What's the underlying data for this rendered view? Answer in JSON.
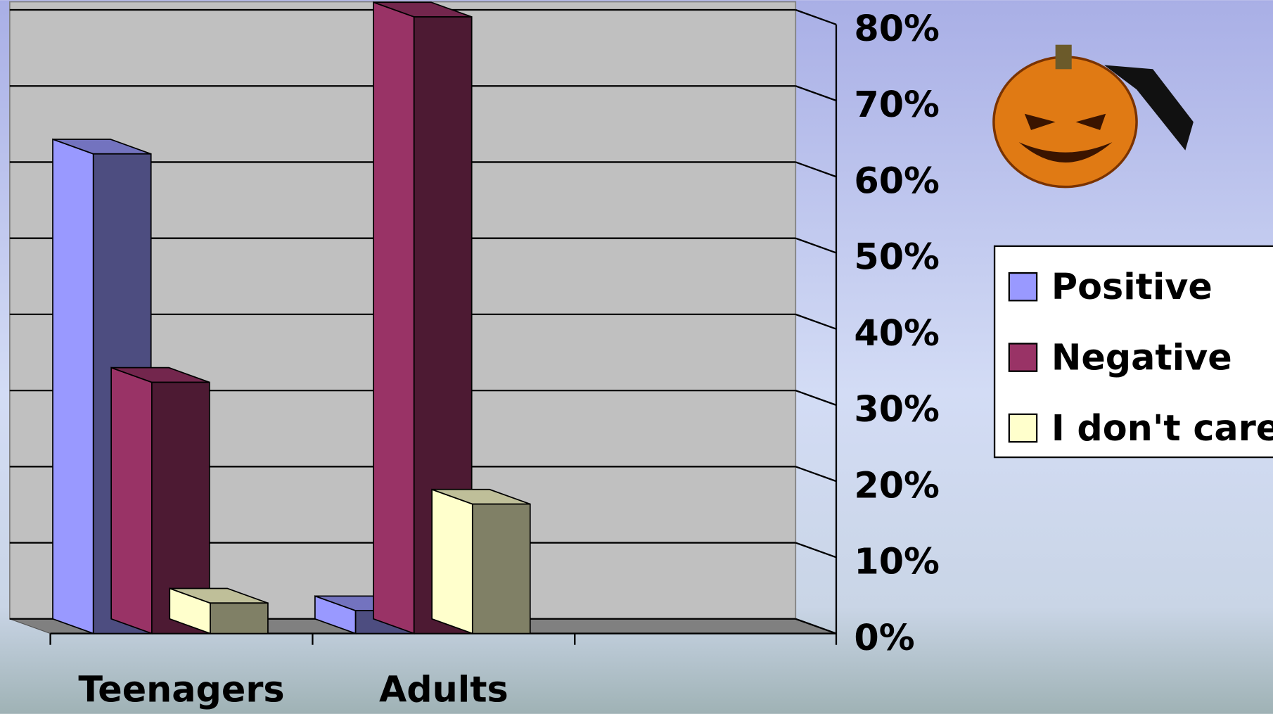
{
  "chart_data": {
    "type": "bar3d",
    "categories": [
      "Teenagers",
      "Adults",
      null
    ],
    "series": [
      {
        "name": "Positive",
        "color": "#9999ff",
        "values": [
          63,
          3,
          null
        ]
      },
      {
        "name": "Negative",
        "color": "#993366",
        "values": [
          33,
          81,
          null
        ]
      },
      {
        "name": "I don't care",
        "color": "#ffffcc",
        "values": [
          4,
          17,
          null
        ]
      }
    ],
    "ylim": [
      0,
      80
    ],
    "yticks": [
      {
        "value": 0,
        "label": "0%"
      },
      {
        "value": 10,
        "label": "10%"
      },
      {
        "value": 20,
        "label": "20%"
      },
      {
        "value": 30,
        "label": "30%"
      },
      {
        "value": 40,
        "label": "40%"
      },
      {
        "value": 50,
        "label": "50%"
      },
      {
        "value": 60,
        "label": "60%"
      },
      {
        "value": 70,
        "label": "70%"
      },
      {
        "value": 80,
        "label": "80%"
      }
    ],
    "grid": true,
    "legend": "right"
  }
}
